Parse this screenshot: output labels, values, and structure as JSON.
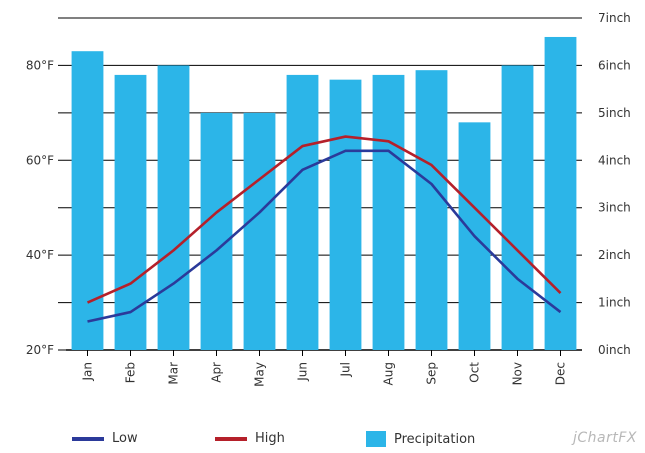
{
  "chart_data": {
    "type": "bar+line",
    "categories": [
      "Jan",
      "Feb",
      "Mar",
      "Apr",
      "May",
      "Jun",
      "Jul",
      "Aug",
      "Sep",
      "Oct",
      "Nov",
      "Dec"
    ],
    "series": [
      {
        "name": "Low",
        "type": "line",
        "axis": "left",
        "color": "#2b3a9a",
        "values": [
          26,
          28,
          34,
          41,
          49,
          58,
          62,
          62,
          55,
          44,
          35,
          28
        ]
      },
      {
        "name": "High",
        "type": "line",
        "axis": "left",
        "color": "#b5202a",
        "values": [
          30,
          34,
          41,
          49,
          56,
          63,
          65,
          64,
          59,
          50,
          41,
          32
        ]
      },
      {
        "name": "Precipitation",
        "type": "bar",
        "axis": "right",
        "color": "#2cb5e8",
        "values": [
          6.3,
          5.8,
          6.0,
          5.0,
          5.0,
          5.8,
          5.7,
          5.8,
          5.9,
          4.8,
          6.0,
          6.6
        ]
      }
    ],
    "left_axis": {
      "ticks": [
        20,
        40,
        60,
        80
      ],
      "tick_labels": [
        "20°F",
        "40°F",
        "60°F",
        "80°F"
      ],
      "range": [
        20,
        90
      ]
    },
    "right_axis": {
      "ticks": [
        0,
        1,
        2,
        3,
        4,
        5,
        6,
        7
      ],
      "tick_labels": [
        "0inch",
        "1inch",
        "2inch",
        "3inch",
        "4inch",
        "5inch",
        "6inch",
        "7inch"
      ],
      "range": [
        0,
        7
      ]
    },
    "grid": true,
    "legend_position": "bottom"
  },
  "legend": {
    "low": "Low",
    "high": "High",
    "precipitation": "Precipitation"
  },
  "brand": "jChartFX"
}
